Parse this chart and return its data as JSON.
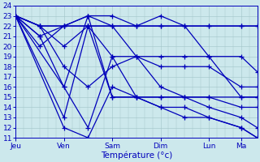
{
  "xlabel": "Température (°c)",
  "bg_color": "#cce8ec",
  "line_color": "#0000bb",
  "ylim": [
    11,
    24
  ],
  "yticks": [
    11,
    12,
    13,
    14,
    15,
    16,
    17,
    18,
    19,
    20,
    21,
    22,
    23,
    24
  ],
  "days": [
    "Jeu",
    "Ven",
    "Sam",
    "Dim",
    "Lun",
    "Ma"
  ],
  "day_positions": [
    0,
    18,
    36,
    54,
    72,
    84
  ],
  "xlim": [
    0,
    90
  ],
  "grid_color": "#a0c4c8",
  "grid_linewidth": 0.4,
  "tick_fontsize": 6.5,
  "xlabel_fontsize": 7.5,
  "lines": [
    [
      [
        0,
        23
      ],
      [
        18,
        12
      ],
      [
        27,
        11
      ],
      [
        36,
        16
      ],
      [
        45,
        15
      ],
      [
        54,
        14
      ],
      [
        63,
        14
      ],
      [
        72,
        13
      ],
      [
        84,
        12
      ],
      [
        90,
        11
      ]
    ],
    [
      [
        0,
        23
      ],
      [
        18,
        16
      ],
      [
        27,
        12
      ],
      [
        36,
        19
      ],
      [
        45,
        15
      ],
      [
        54,
        15
      ],
      [
        63,
        15
      ],
      [
        72,
        15
      ],
      [
        84,
        15
      ],
      [
        90,
        15
      ]
    ],
    [
      [
        0,
        23
      ],
      [
        9,
        22
      ],
      [
        18,
        18
      ],
      [
        27,
        16
      ],
      [
        36,
        18
      ],
      [
        45,
        19
      ],
      [
        54,
        16
      ],
      [
        63,
        15
      ],
      [
        72,
        15
      ],
      [
        84,
        14
      ],
      [
        90,
        14
      ]
    ],
    [
      [
        0,
        23
      ],
      [
        9,
        22
      ],
      [
        18,
        22
      ],
      [
        27,
        23
      ],
      [
        36,
        23
      ],
      [
        45,
        22
      ],
      [
        54,
        22
      ],
      [
        63,
        22
      ],
      [
        72,
        19
      ],
      [
        84,
        15
      ],
      [
        90,
        15
      ]
    ],
    [
      [
        0,
        23
      ],
      [
        9,
        22
      ],
      [
        18,
        20
      ],
      [
        27,
        22
      ],
      [
        36,
        19
      ],
      [
        45,
        19
      ],
      [
        54,
        19
      ],
      [
        63,
        19
      ],
      [
        72,
        19
      ],
      [
        84,
        19
      ],
      [
        90,
        17.5
      ]
    ],
    [
      [
        0,
        23
      ],
      [
        9,
        21
      ],
      [
        18,
        22
      ],
      [
        27,
        22
      ],
      [
        36,
        22
      ],
      [
        45,
        19
      ],
      [
        54,
        18
      ],
      [
        63,
        18
      ],
      [
        72,
        18
      ],
      [
        84,
        16
      ],
      [
        90,
        16
      ]
    ],
    [
      [
        0,
        23
      ],
      [
        9,
        21
      ],
      [
        18,
        16
      ],
      [
        27,
        23
      ],
      [
        36,
        15
      ],
      [
        45,
        15
      ],
      [
        54,
        15
      ],
      [
        63,
        15
      ],
      [
        72,
        14
      ],
      [
        84,
        13
      ],
      [
        90,
        12
      ]
    ],
    [
      [
        0,
        23
      ],
      [
        9,
        20
      ],
      [
        18,
        22
      ],
      [
        27,
        23
      ],
      [
        36,
        22
      ],
      [
        45,
        22
      ],
      [
        54,
        23
      ],
      [
        63,
        22
      ],
      [
        72,
        22
      ],
      [
        84,
        22
      ],
      [
        90,
        22
      ]
    ],
    [
      [
        0,
        23
      ],
      [
        9,
        22
      ],
      [
        18,
        22
      ],
      [
        27,
        22
      ],
      [
        36,
        22
      ],
      [
        45,
        22
      ],
      [
        54,
        22
      ],
      [
        63,
        22
      ],
      [
        72,
        22
      ],
      [
        84,
        22
      ],
      [
        90,
        22
      ]
    ],
    [
      [
        0,
        23
      ],
      [
        18,
        13
      ],
      [
        27,
        22
      ],
      [
        36,
        15
      ],
      [
        45,
        15
      ],
      [
        54,
        14
      ],
      [
        63,
        13
      ],
      [
        72,
        13
      ],
      [
        84,
        12
      ],
      [
        90,
        11
      ]
    ]
  ]
}
